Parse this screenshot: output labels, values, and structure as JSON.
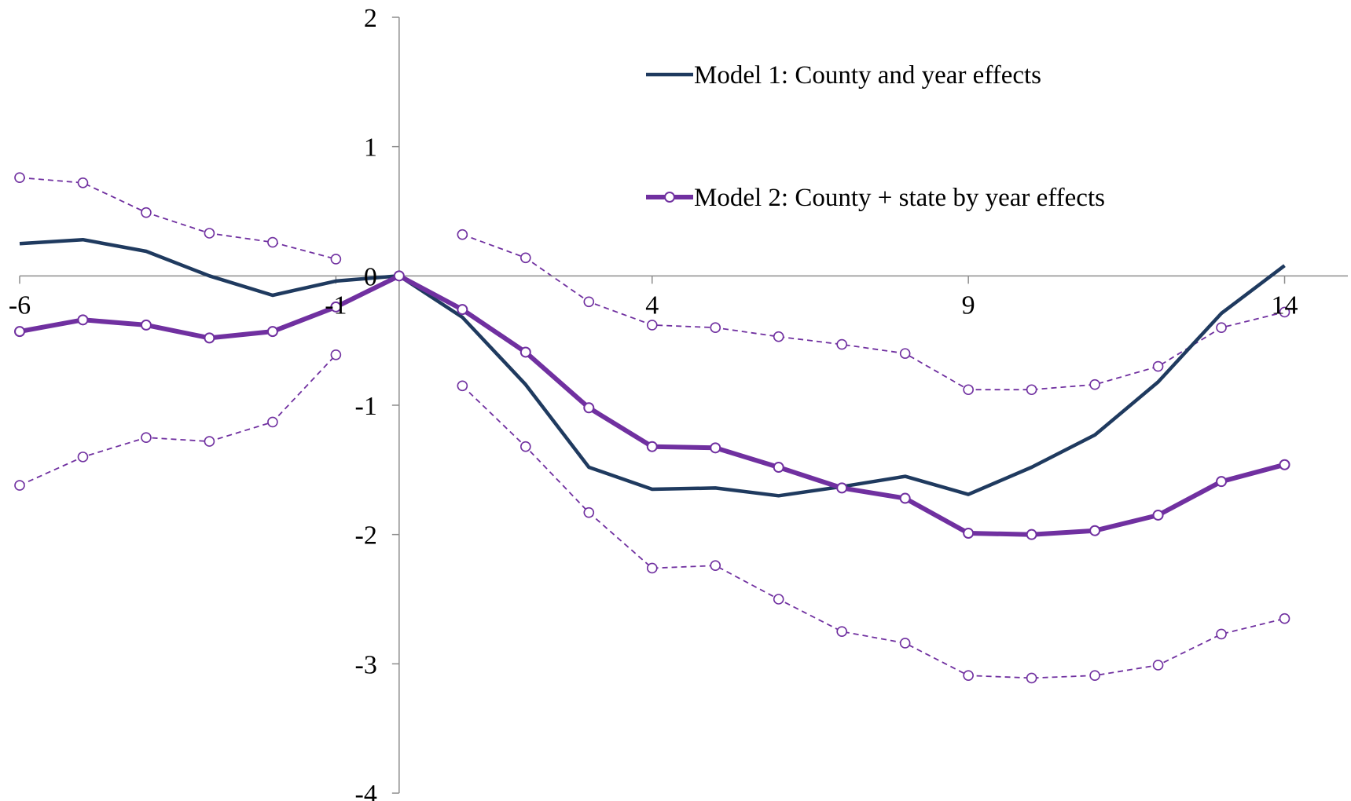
{
  "chart_data": {
    "type": "line",
    "title": "",
    "xlabel": "",
    "ylabel": "",
    "x": [
      -6,
      -5,
      -4,
      -3,
      -2,
      -1,
      0,
      1,
      2,
      3,
      4,
      5,
      6,
      7,
      8,
      9,
      10,
      11,
      12,
      13,
      14
    ],
    "xlim": [
      -6,
      15
    ],
    "ylim": [
      -4,
      2
    ],
    "x_ticks": [
      "-6",
      "-1",
      "4",
      "9",
      "14"
    ],
    "x_tick_values": [
      -6,
      -1,
      4,
      9,
      14
    ],
    "y_ticks": [
      "2",
      "1",
      "0",
      "-1",
      "-2",
      "-3",
      "-4"
    ],
    "y_tick_values": [
      2,
      1,
      0,
      -1,
      -2,
      -3,
      -4
    ],
    "legend_position": "top-right",
    "grid": false,
    "series": [
      {
        "name": "Model 1: County and year effects",
        "color": "#1f3a5f",
        "style": "solid",
        "x": [
          -6,
          -5,
          -4,
          -3,
          -2,
          -1,
          0,
          1,
          2,
          3,
          4,
          5,
          6,
          7,
          8,
          9,
          10,
          11,
          12,
          13,
          14
        ],
        "values": [
          0.25,
          0.28,
          0.19,
          0.0,
          -0.15,
          -0.04,
          0.0,
          -0.32,
          -0.84,
          -1.48,
          -1.65,
          -1.64,
          -1.7,
          -1.63,
          -1.55,
          -1.69,
          -1.48,
          -1.23,
          -0.82,
          -0.29,
          0.08
        ]
      },
      {
        "name": "Model 2: County + state by year effects",
        "color": "#7030a0",
        "style": "solid-markers",
        "x": [
          -6,
          -5,
          -4,
          -3,
          -2,
          -1,
          0,
          1,
          2,
          3,
          4,
          5,
          6,
          7,
          8,
          9,
          10,
          11,
          12,
          13,
          14
        ],
        "values": [
          -0.43,
          -0.34,
          -0.38,
          -0.48,
          -0.43,
          -0.24,
          0.0,
          -0.26,
          -0.59,
          -1.02,
          -1.32,
          -1.33,
          -1.48,
          -1.64,
          -1.72,
          -1.99,
          -2.0,
          -1.97,
          -1.85,
          -1.59,
          -1.46
        ]
      },
      {
        "name": "",
        "color": "#7030a0",
        "style": "dashed-open-markers",
        "x": [
          -6,
          -5,
          -4,
          -3,
          -2,
          -1
        ],
        "values": [
          0.76,
          0.72,
          0.49,
          0.33,
          0.26,
          0.13
        ]
      },
      {
        "name": "",
        "color": "#7030a0",
        "style": "dashed-open-markers",
        "x": [
          1,
          2,
          3,
          4,
          5,
          6,
          7,
          8,
          9,
          10,
          11,
          12,
          13,
          14
        ],
        "values": [
          0.32,
          0.14,
          -0.2,
          -0.38,
          -0.4,
          -0.47,
          -0.53,
          -0.6,
          -0.88,
          -0.88,
          -0.84,
          -0.7,
          -0.4,
          -0.28
        ]
      },
      {
        "name": "",
        "color": "#7030a0",
        "style": "dashed-open-markers",
        "x": [
          -6,
          -5,
          -4,
          -3,
          -2,
          -1
        ],
        "values": [
          -1.62,
          -1.4,
          -1.25,
          -1.28,
          -1.13,
          -0.61
        ]
      },
      {
        "name": "",
        "color": "#7030a0",
        "style": "dashed-open-markers",
        "x": [
          1,
          2,
          3,
          4,
          5,
          6,
          7,
          8,
          9,
          10,
          11,
          12,
          13,
          14
        ],
        "values": [
          -0.85,
          -1.32,
          -1.83,
          -2.26,
          -2.24,
          -2.5,
          -2.75,
          -2.84,
          -3.09,
          -3.11,
          -3.09,
          -3.01,
          -2.77,
          -2.65
        ]
      }
    ]
  }
}
